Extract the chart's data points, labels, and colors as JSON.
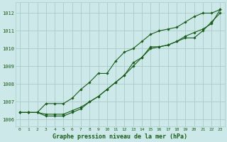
{
  "title": "Graphe pression niveau de la mer (hPa)",
  "background_color": "#cce8e8",
  "grid_color": "#aacaca",
  "line_color": "#1a5c1a",
  "xlim": [
    -0.5,
    23.5
  ],
  "ylim": [
    1005.6,
    1012.6
  ],
  "yticks": [
    1006,
    1007,
    1008,
    1009,
    1010,
    1011,
    1012
  ],
  "xticks": [
    0,
    1,
    2,
    3,
    4,
    5,
    6,
    7,
    8,
    9,
    10,
    11,
    12,
    13,
    14,
    15,
    16,
    17,
    18,
    19,
    20,
    21,
    22,
    23
  ],
  "series": [
    {
      "x": [
        0,
        1,
        2,
        3,
        4,
        5,
        6,
        7,
        8,
        9,
        10,
        11,
        12,
        13,
        14,
        15,
        16,
        17,
        18,
        19,
        20,
        21,
        22,
        23
      ],
      "y": [
        1006.4,
        1006.4,
        1006.4,
        1006.3,
        1006.3,
        1006.3,
        1006.5,
        1006.7,
        1007.0,
        1007.3,
        1007.7,
        1008.1,
        1008.5,
        1009.2,
        1009.5,
        1010.1,
        1010.1,
        1010.2,
        1010.4,
        1010.6,
        1010.6,
        1011.0,
        1011.5,
        1012.0
      ],
      "linestyle": "-"
    },
    {
      "x": [
        0,
        1,
        2,
        3,
        4,
        5,
        6,
        7,
        8,
        9,
        10,
        11,
        12,
        13,
        14,
        15,
        16,
        17,
        18,
        19,
        20,
        21,
        22,
        23
      ],
      "y": [
        1006.4,
        1006.4,
        1006.4,
        1006.2,
        1006.2,
        1006.2,
        1006.4,
        1006.6,
        1007.0,
        1007.3,
        1007.7,
        1008.1,
        1008.5,
        1009.0,
        1009.5,
        1010.0,
        1010.1,
        1010.2,
        1010.4,
        1010.7,
        1010.9,
        1011.1,
        1011.4,
        1012.2
      ],
      "linestyle": "-"
    },
    {
      "x": [
        0,
        1,
        2,
        3,
        4,
        5,
        6,
        7,
        8,
        9,
        10,
        11,
        12,
        13,
        14,
        15,
        16,
        17,
        18,
        19,
        20,
        21,
        22,
        23
      ],
      "y": [
        1006.4,
        1006.4,
        1006.4,
        1006.9,
        1006.9,
        1006.9,
        1007.2,
        1007.7,
        1008.1,
        1008.6,
        1008.6,
        1009.3,
        1009.8,
        1010.0,
        1010.4,
        1010.8,
        1011.0,
        1011.1,
        1011.2,
        1011.5,
        1011.8,
        1012.0,
        1012.0,
        1012.2
      ],
      "linestyle": "-"
    }
  ]
}
